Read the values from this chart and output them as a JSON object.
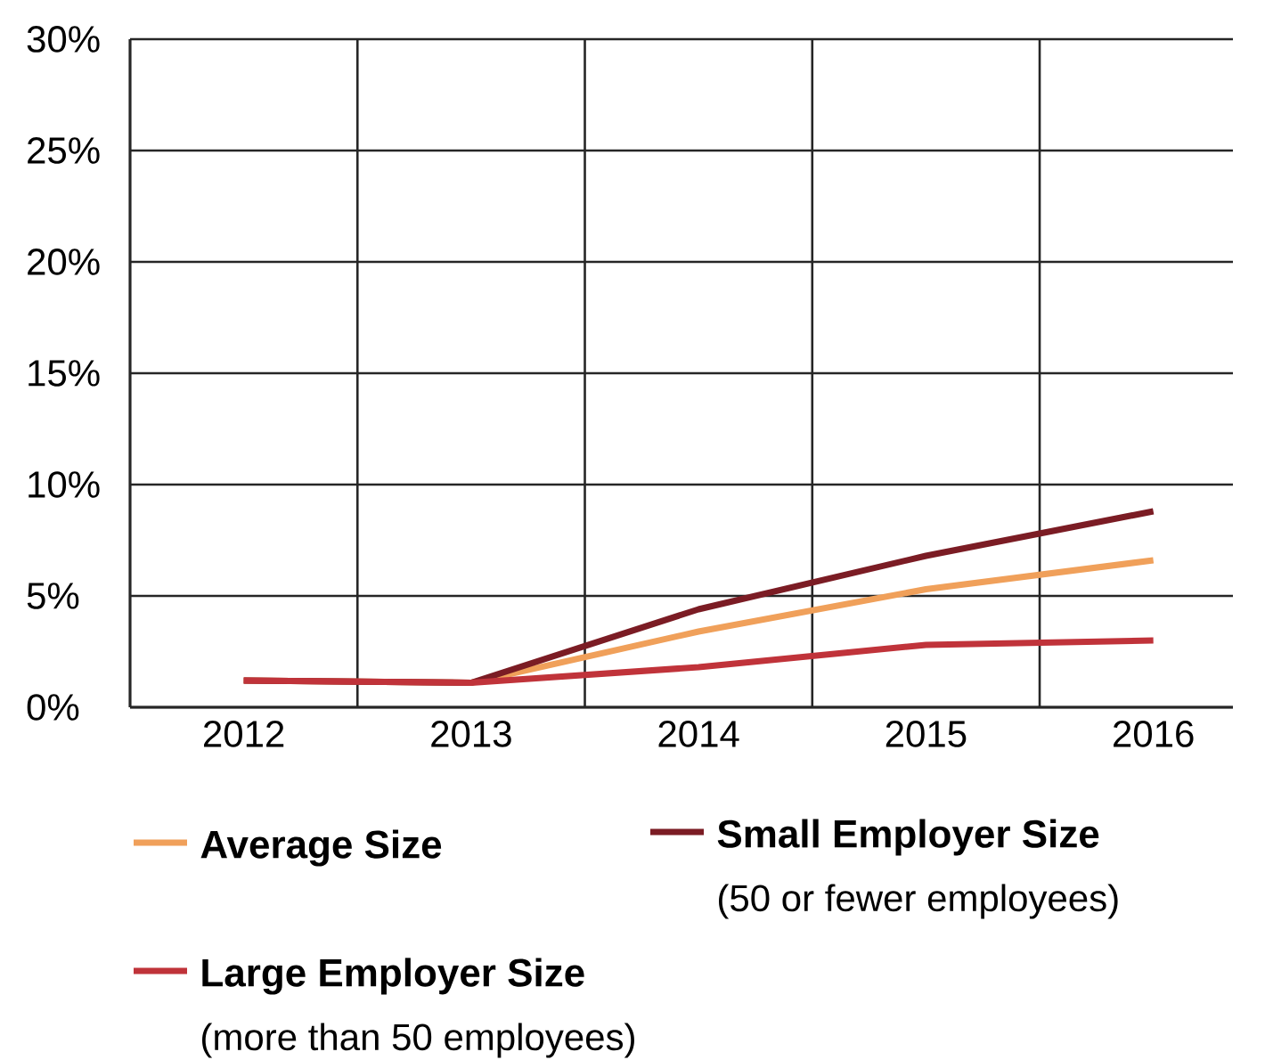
{
  "chart_data": {
    "type": "line",
    "categories": [
      "2012",
      "2013",
      "2014",
      "2015",
      "2016"
    ],
    "series": [
      {
        "name": "Average Size",
        "color": "#f0a05a",
        "values": [
          1.2,
          1.1,
          3.4,
          5.3,
          6.6
        ]
      },
      {
        "name": "Small Employer Size",
        "color": "#7b1c24",
        "values": [
          1.2,
          1.1,
          4.4,
          6.8,
          8.8
        ]
      },
      {
        "name": "Large Employer Size",
        "color": "#c0333a",
        "values": [
          1.2,
          1.1,
          1.8,
          2.8,
          3.0
        ]
      }
    ],
    "ylim": [
      0,
      30
    ],
    "yticks": [
      {
        "value": 0,
        "label": "0%"
      },
      {
        "value": 5,
        "label": "5%"
      },
      {
        "value": 10,
        "label": "10%"
      },
      {
        "value": 15,
        "label": "15%"
      },
      {
        "value": 20,
        "label": "20%"
      },
      {
        "value": 25,
        "label": "25%"
      },
      {
        "value": 30,
        "label": "30%"
      }
    ],
    "grid": true,
    "legend": "bottom",
    "line_style": "solid",
    "marker": "none",
    "annotations": [
      "(50 or fewer employees)",
      "(more than 50 employees)"
    ]
  }
}
